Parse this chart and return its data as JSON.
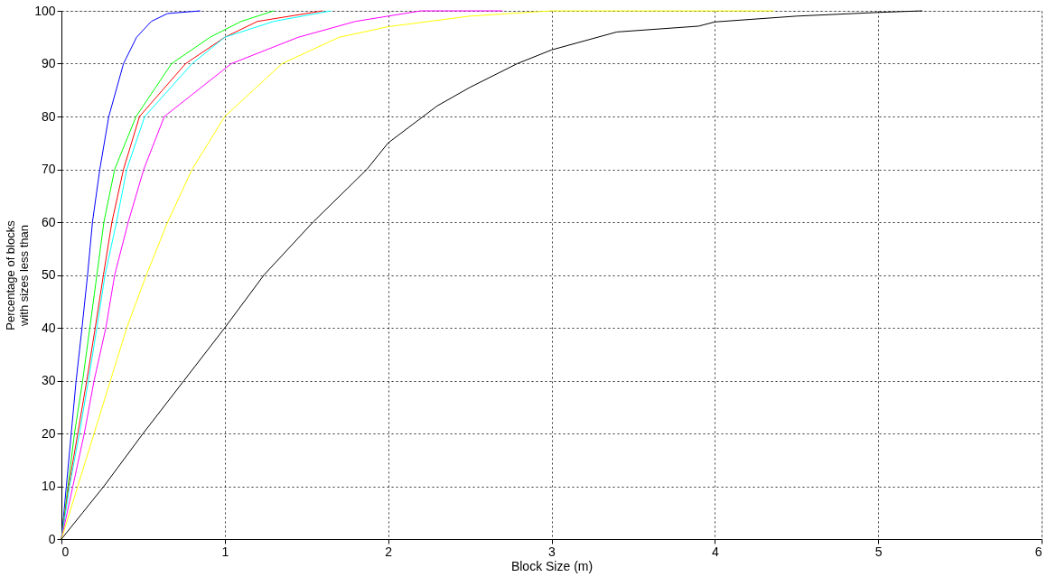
{
  "chart_data": {
    "type": "line",
    "xlabel": "Block Size (m)",
    "ylabel": "Percentage of blocks\nwith sizes less than",
    "xlim": [
      0,
      6
    ],
    "xticks": [
      0,
      1,
      2,
      3,
      4,
      5,
      6
    ],
    "ylim": [
      0,
      100
    ],
    "yticks": [
      0,
      10,
      20,
      30,
      40,
      50,
      60,
      70,
      80,
      90,
      100
    ],
    "grid": true,
    "line_style": "solid",
    "marker": "none",
    "series": [
      {
        "color": "#0000ff",
        "x": [
          0,
          0.03,
          0.06,
          0.09,
          0.126,
          0.16,
          0.19,
          0.235,
          0.29,
          0.38,
          0.46,
          0.55,
          0.65,
          0.85
        ],
        "values": [
          0,
          10,
          20,
          30,
          40,
          50,
          60,
          70,
          80,
          90,
          95,
          98,
          99.5,
          100
        ]
      },
      {
        "color": "#00ff00",
        "x": [
          0,
          0.04,
          0.08,
          0.13,
          0.174,
          0.217,
          0.26,
          0.326,
          0.457,
          0.674,
          0.91,
          1.1,
          1.3
        ],
        "values": [
          0,
          10,
          20,
          30,
          40,
          50,
          60,
          70,
          80,
          90,
          95,
          98,
          100
        ]
      },
      {
        "color": "#ff0000",
        "x": [
          0,
          0.045,
          0.1,
          0.155,
          0.207,
          0.257,
          0.309,
          0.38,
          0.478,
          0.76,
          1.0,
          1.2,
          1.6
        ],
        "values": [
          0,
          10,
          20,
          30,
          40,
          50,
          60,
          70,
          80,
          90,
          95,
          98,
          100
        ]
      },
      {
        "color": "#00ffff",
        "x": [
          0,
          0.05,
          0.11,
          0.165,
          0.217,
          0.267,
          0.337,
          0.4,
          0.51,
          0.8,
          1.0,
          1.3,
          1.65
        ],
        "values": [
          0,
          10,
          20,
          30,
          40,
          50,
          60,
          70,
          80,
          90,
          95,
          98,
          100
        ]
      },
      {
        "color": "#ff00ff",
        "x": [
          0,
          0.07,
          0.14,
          0.2,
          0.272,
          0.326,
          0.409,
          0.504,
          0.63,
          1.04,
          1.45,
          1.8,
          2.2,
          2.7
        ],
        "values": [
          0,
          10,
          20,
          30,
          40,
          50,
          60,
          70,
          80,
          90,
          95,
          98,
          100,
          100
        ]
      },
      {
        "color": "#ffff00",
        "x": [
          0,
          0.1,
          0.2,
          0.3,
          0.4,
          0.52,
          0.65,
          0.8,
          1.0,
          1.35,
          1.7,
          2.0,
          2.5,
          3.0,
          4.36
        ],
        "values": [
          0,
          10,
          20,
          30,
          40,
          50,
          60,
          70,
          80,
          90,
          95,
          97,
          99,
          100,
          100
        ]
      },
      {
        "color": "#000000",
        "x": [
          0,
          0.13,
          0.26,
          0.5,
          0.75,
          1.0,
          1.24,
          1.54,
          1.87,
          2.0,
          2.3,
          2.5,
          2.79,
          3.0,
          3.4,
          3.9,
          4.0,
          4.5,
          5.0,
          5.27
        ],
        "values": [
          0,
          5,
          10,
          20,
          30,
          40,
          50,
          60,
          70,
          75,
          82,
          85.5,
          90,
          92.6,
          96,
          97.1,
          97.9,
          99,
          99.7,
          100
        ]
      }
    ]
  }
}
